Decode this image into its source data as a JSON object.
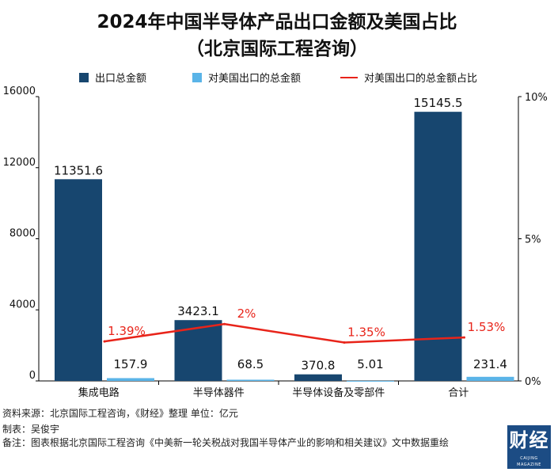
{
  "title_line1": "2024年中国半导体产品出口金额及美国占比",
  "title_line2": "（北京国际工程咨询）",
  "colors": {
    "total": "#17466f",
    "us": "#5ab4e8",
    "share": "#e8241a",
    "axis": "#000000"
  },
  "chart_data": {
    "type": "bar",
    "title": "2024年中国半导体产品出口金额及美国占比",
    "categories": [
      "集成电路",
      "半导体器件",
      "半导体设备及零部件",
      "合计"
    ],
    "series": [
      {
        "name": "出口总金额",
        "type": "bar",
        "axis": "left",
        "values": [
          11351.6,
          3423.1,
          370.8,
          15145.5
        ],
        "labels": [
          "11351.6",
          "3423.1",
          "370.8",
          "15145.5"
        ]
      },
      {
        "name": "对美国出口的总金额",
        "type": "bar",
        "axis": "left",
        "values": [
          157.9,
          68.5,
          5.01,
          231.4
        ],
        "labels": [
          "157.9",
          "68.5",
          "5.01",
          "231.4"
        ]
      },
      {
        "name": "对美国出口的总金额占比",
        "type": "line",
        "axis": "right",
        "values": [
          1.39,
          2.0,
          1.35,
          1.53
        ],
        "labels": [
          "1.39%",
          "2%",
          "1.35%",
          "1.53%"
        ]
      }
    ],
    "y_left": {
      "min": 0,
      "max": 16000,
      "ticks": [
        "0",
        "4000",
        "8000",
        "12000",
        "16000"
      ]
    },
    "y_right": {
      "min": 0,
      "max": 10,
      "ticks": [
        "0%",
        "5%",
        "10%"
      ]
    },
    "legend_position": "top"
  },
  "footer": {
    "source": "资料来源：北京国际工程咨询，《财经》整理      单位：亿元",
    "author": "制表：吴俊宇",
    "note": "备注：图表根据北京国际工程咨询《中美新一轮关税战对我国半导体产业的影响和相关建议》文中数据重绘"
  },
  "logo": {
    "main": "财经",
    "sub": "CAIJING MAGAZINE"
  }
}
